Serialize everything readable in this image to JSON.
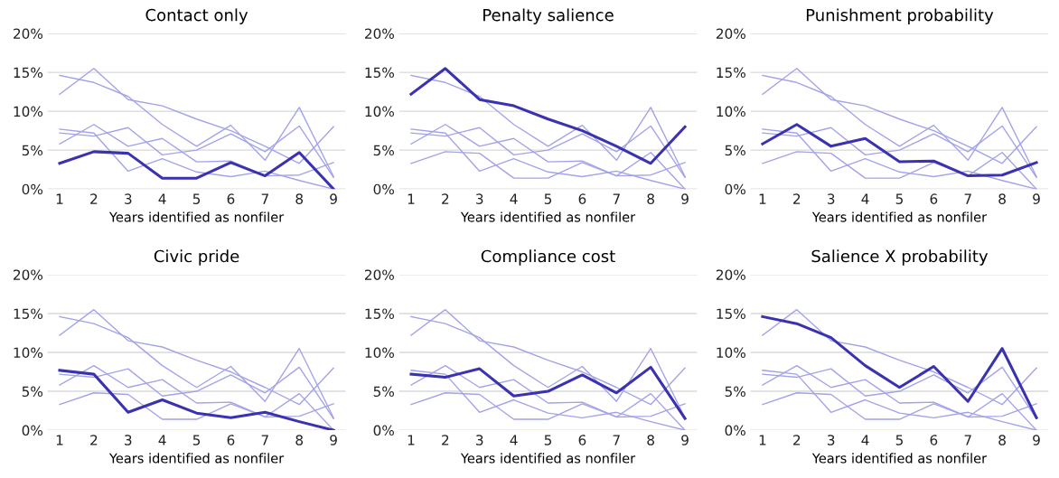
{
  "chart_data": [
    {
      "type": "line",
      "title": "Contact only",
      "xlabel": "Years identified as nonfiler",
      "categories": [
        "1",
        "2",
        "3",
        "4",
        "5",
        "6",
        "7",
        "8",
        "9"
      ],
      "ylim": [
        0,
        20
      ],
      "yticks": [
        {
          "value": 0,
          "label": "0%"
        },
        {
          "value": 5,
          "label": "5%"
        },
        {
          "value": 10,
          "label": "10%"
        },
        {
          "value": 15,
          "label": "15%"
        },
        {
          "value": 20,
          "label": "20%"
        }
      ],
      "grid": "y",
      "legend": false,
      "marker": "none",
      "line_style": "solid",
      "series": [
        {
          "color": "#a3a3ea",
          "values": [
            12.2,
            15.5,
            11.5,
            10.7,
            9.0,
            7.5,
            5.5,
            3.3,
            8.0
          ]
        },
        {
          "color": "#a3a3ea",
          "values": [
            5.8,
            8.3,
            5.5,
            6.5,
            3.5,
            3.6,
            1.7,
            1.8,
            3.4
          ]
        },
        {
          "color": "#a3a3ea",
          "values": [
            7.7,
            7.2,
            2.3,
            3.9,
            2.2,
            1.6,
            2.3,
            1.1,
            0.0
          ]
        },
        {
          "color": "#a3a3ea",
          "values": [
            7.2,
            6.8,
            7.9,
            4.4,
            5.0,
            7.1,
            4.8,
            8.1,
            1.5
          ]
        },
        {
          "color": "#a3a3ea",
          "values": [
            14.6,
            13.7,
            11.9,
            8.3,
            5.5,
            8.2,
            3.7,
            10.5,
            1.6
          ]
        },
        {
          "color": "#3a32b0",
          "values": [
            3.3,
            4.8,
            4.6,
            1.4,
            1.4,
            3.4,
            1.7,
            4.7,
            0.0
          ]
        }
      ]
    },
    {
      "type": "line",
      "title": "Penalty salience",
      "xlabel": "Years identified as nonfiler",
      "categories": [
        "1",
        "2",
        "3",
        "4",
        "5",
        "6",
        "7",
        "8",
        "9"
      ],
      "ylim": [
        0,
        20
      ],
      "yticks": [
        {
          "value": 0,
          "label": "0%"
        },
        {
          "value": 5,
          "label": "5%"
        },
        {
          "value": 10,
          "label": "10%"
        },
        {
          "value": 15,
          "label": "15%"
        },
        {
          "value": 20,
          "label": "20%"
        }
      ],
      "grid": "y",
      "legend": false,
      "marker": "none",
      "line_style": "solid",
      "series": [
        {
          "color": "#a3a3ea",
          "values": [
            3.3,
            4.8,
            4.6,
            1.4,
            1.4,
            3.4,
            1.7,
            4.7,
            0.0
          ]
        },
        {
          "color": "#a3a3ea",
          "values": [
            5.8,
            8.3,
            5.5,
            6.5,
            3.5,
            3.6,
            1.7,
            1.8,
            3.4
          ]
        },
        {
          "color": "#a3a3ea",
          "values": [
            7.7,
            7.2,
            2.3,
            3.9,
            2.2,
            1.6,
            2.3,
            1.1,
            0.0
          ]
        },
        {
          "color": "#a3a3ea",
          "values": [
            7.2,
            6.8,
            7.9,
            4.4,
            5.0,
            7.1,
            4.8,
            8.1,
            1.5
          ]
        },
        {
          "color": "#a3a3ea",
          "values": [
            14.6,
            13.7,
            11.9,
            8.3,
            5.5,
            8.2,
            3.7,
            10.5,
            1.6
          ]
        },
        {
          "color": "#3a32b0",
          "values": [
            12.2,
            15.5,
            11.5,
            10.7,
            9.0,
            7.5,
            5.5,
            3.3,
            8.0
          ]
        }
      ]
    },
    {
      "type": "line",
      "title": "Punishment probability",
      "xlabel": "Years identified as nonfiler",
      "categories": [
        "1",
        "2",
        "3",
        "4",
        "5",
        "6",
        "7",
        "8",
        "9"
      ],
      "ylim": [
        0,
        20
      ],
      "yticks": [
        {
          "value": 0,
          "label": "0%"
        },
        {
          "value": 5,
          "label": "5%"
        },
        {
          "value": 10,
          "label": "10%"
        },
        {
          "value": 15,
          "label": "15%"
        },
        {
          "value": 20,
          "label": "20%"
        }
      ],
      "grid": "y",
      "legend": false,
      "marker": "none",
      "line_style": "solid",
      "series": [
        {
          "color": "#a3a3ea",
          "values": [
            3.3,
            4.8,
            4.6,
            1.4,
            1.4,
            3.4,
            1.7,
            4.7,
            0.0
          ]
        },
        {
          "color": "#a3a3ea",
          "values": [
            12.2,
            15.5,
            11.5,
            10.7,
            9.0,
            7.5,
            5.5,
            3.3,
            8.0
          ]
        },
        {
          "color": "#a3a3ea",
          "values": [
            7.7,
            7.2,
            2.3,
            3.9,
            2.2,
            1.6,
            2.3,
            1.1,
            0.0
          ]
        },
        {
          "color": "#a3a3ea",
          "values": [
            7.2,
            6.8,
            7.9,
            4.4,
            5.0,
            7.1,
            4.8,
            8.1,
            1.5
          ]
        },
        {
          "color": "#a3a3ea",
          "values": [
            14.6,
            13.7,
            11.9,
            8.3,
            5.5,
            8.2,
            3.7,
            10.5,
            1.6
          ]
        },
        {
          "color": "#3a32b0",
          "values": [
            5.8,
            8.3,
            5.5,
            6.5,
            3.5,
            3.6,
            1.7,
            1.8,
            3.4
          ]
        }
      ]
    },
    {
      "type": "line",
      "title": "Civic pride",
      "xlabel": "Years identified as nonfiler",
      "categories": [
        "1",
        "2",
        "3",
        "4",
        "5",
        "6",
        "7",
        "8",
        "9"
      ],
      "ylim": [
        0,
        20
      ],
      "yticks": [
        {
          "value": 0,
          "label": "0%"
        },
        {
          "value": 5,
          "label": "5%"
        },
        {
          "value": 10,
          "label": "10%"
        },
        {
          "value": 15,
          "label": "15%"
        },
        {
          "value": 20,
          "label": "20%"
        }
      ],
      "grid": "y",
      "legend": false,
      "marker": "none",
      "line_style": "solid",
      "series": [
        {
          "color": "#a3a3ea",
          "values": [
            3.3,
            4.8,
            4.6,
            1.4,
            1.4,
            3.4,
            1.7,
            4.7,
            0.0
          ]
        },
        {
          "color": "#a3a3ea",
          "values": [
            12.2,
            15.5,
            11.5,
            10.7,
            9.0,
            7.5,
            5.5,
            3.3,
            8.0
          ]
        },
        {
          "color": "#a3a3ea",
          "values": [
            5.8,
            8.3,
            5.5,
            6.5,
            3.5,
            3.6,
            1.7,
            1.8,
            3.4
          ]
        },
        {
          "color": "#a3a3ea",
          "values": [
            7.2,
            6.8,
            7.9,
            4.4,
            5.0,
            7.1,
            4.8,
            8.1,
            1.5
          ]
        },
        {
          "color": "#a3a3ea",
          "values": [
            14.6,
            13.7,
            11.9,
            8.3,
            5.5,
            8.2,
            3.7,
            10.5,
            1.6
          ]
        },
        {
          "color": "#3a32b0",
          "values": [
            7.7,
            7.2,
            2.3,
            3.9,
            2.2,
            1.6,
            2.3,
            1.1,
            0.0
          ]
        }
      ]
    },
    {
      "type": "line",
      "title": "Compliance cost",
      "xlabel": "Years identified as nonfiler",
      "categories": [
        "1",
        "2",
        "3",
        "4",
        "5",
        "6",
        "7",
        "8",
        "9"
      ],
      "ylim": [
        0,
        20
      ],
      "yticks": [
        {
          "value": 0,
          "label": "0%"
        },
        {
          "value": 5,
          "label": "5%"
        },
        {
          "value": 10,
          "label": "10%"
        },
        {
          "value": 15,
          "label": "15%"
        },
        {
          "value": 20,
          "label": "20%"
        }
      ],
      "grid": "y",
      "legend": false,
      "marker": "none",
      "line_style": "solid",
      "series": [
        {
          "color": "#a3a3ea",
          "values": [
            3.3,
            4.8,
            4.6,
            1.4,
            1.4,
            3.4,
            1.7,
            4.7,
            0.0
          ]
        },
        {
          "color": "#a3a3ea",
          "values": [
            12.2,
            15.5,
            11.5,
            10.7,
            9.0,
            7.5,
            5.5,
            3.3,
            8.0
          ]
        },
        {
          "color": "#a3a3ea",
          "values": [
            5.8,
            8.3,
            5.5,
            6.5,
            3.5,
            3.6,
            1.7,
            1.8,
            3.4
          ]
        },
        {
          "color": "#a3a3ea",
          "values": [
            7.7,
            7.2,
            2.3,
            3.9,
            2.2,
            1.6,
            2.3,
            1.1,
            0.0
          ]
        },
        {
          "color": "#a3a3ea",
          "values": [
            14.6,
            13.7,
            11.9,
            8.3,
            5.5,
            8.2,
            3.7,
            10.5,
            1.6
          ]
        },
        {
          "color": "#3a32b0",
          "values": [
            7.2,
            6.8,
            7.9,
            4.4,
            5.0,
            7.1,
            4.8,
            8.1,
            1.5
          ]
        }
      ]
    },
    {
      "type": "line",
      "title": "Salience X probability",
      "xlabel": "Years identified as nonfiler",
      "categories": [
        "1",
        "2",
        "3",
        "4",
        "5",
        "6",
        "7",
        "8",
        "9"
      ],
      "ylim": [
        0,
        20
      ],
      "yticks": [
        {
          "value": 0,
          "label": "0%"
        },
        {
          "value": 5,
          "label": "5%"
        },
        {
          "value": 10,
          "label": "10%"
        },
        {
          "value": 15,
          "label": "15%"
        },
        {
          "value": 20,
          "label": "20%"
        }
      ],
      "grid": "y",
      "legend": false,
      "marker": "none",
      "line_style": "solid",
      "series": [
        {
          "color": "#a3a3ea",
          "values": [
            3.3,
            4.8,
            4.6,
            1.4,
            1.4,
            3.4,
            1.7,
            4.7,
            0.0
          ]
        },
        {
          "color": "#a3a3ea",
          "values": [
            12.2,
            15.5,
            11.5,
            10.7,
            9.0,
            7.5,
            5.5,
            3.3,
            8.0
          ]
        },
        {
          "color": "#a3a3ea",
          "values": [
            5.8,
            8.3,
            5.5,
            6.5,
            3.5,
            3.6,
            1.7,
            1.8,
            3.4
          ]
        },
        {
          "color": "#a3a3ea",
          "values": [
            7.7,
            7.2,
            2.3,
            3.9,
            2.2,
            1.6,
            2.3,
            1.1,
            0.0
          ]
        },
        {
          "color": "#a3a3ea",
          "values": [
            7.2,
            6.8,
            7.9,
            4.4,
            5.0,
            7.1,
            4.8,
            8.1,
            1.5
          ]
        },
        {
          "color": "#3a32b0",
          "values": [
            14.6,
            13.7,
            11.9,
            8.3,
            5.5,
            8.2,
            3.7,
            10.5,
            1.6
          ]
        }
      ]
    }
  ]
}
